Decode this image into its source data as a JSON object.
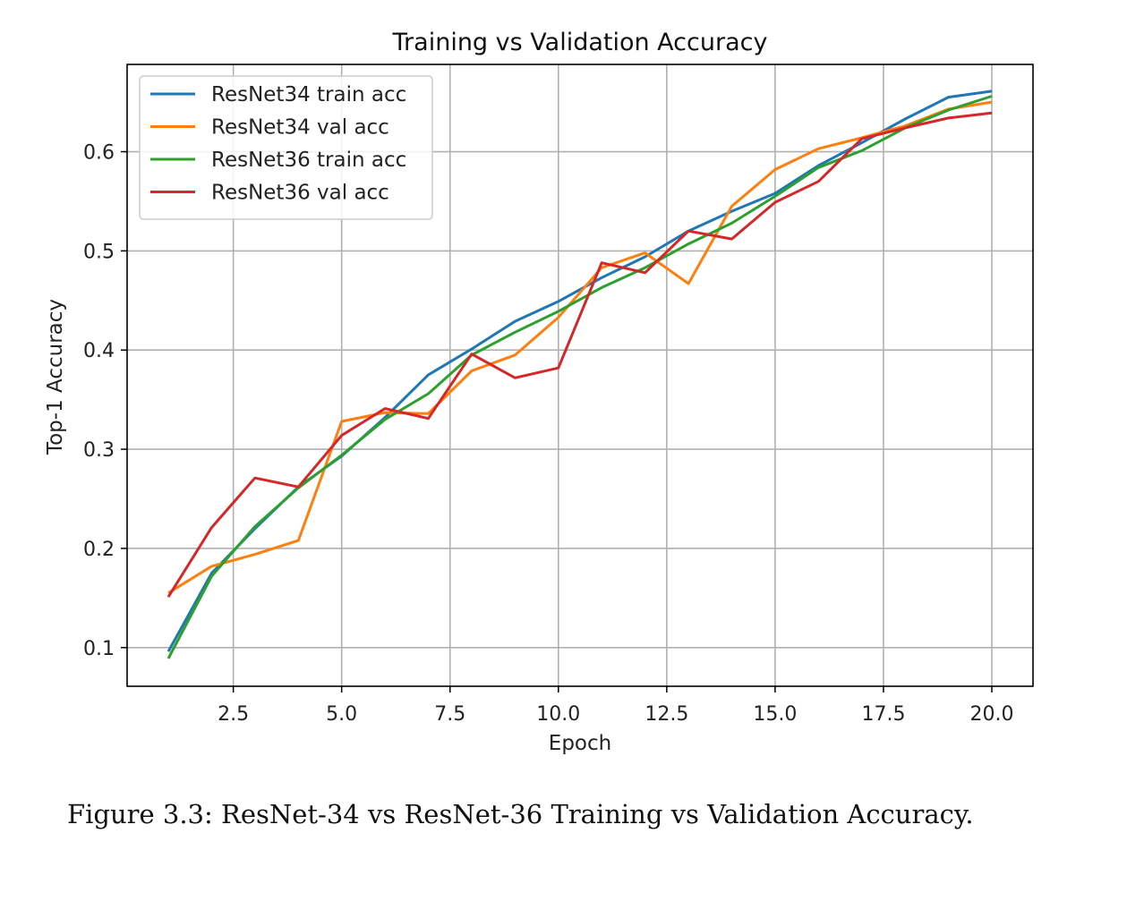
{
  "figure": {
    "caption": "Figure 3.3: ResNet-34 vs ResNet-36 Training vs Validation Accuracy."
  },
  "chart_data": {
    "type": "line",
    "title": "Training vs Validation Accuracy",
    "xlabel": "Epoch",
    "ylabel": "Top-1 Accuracy",
    "xlim": [
      0.05,
      20.95
    ],
    "ylim": [
      0.061,
      0.688
    ],
    "xticks": [
      2.5,
      5.0,
      7.5,
      10.0,
      12.5,
      15.0,
      17.5,
      20.0
    ],
    "xtick_labels": [
      "2.5",
      "5.0",
      "7.5",
      "10.0",
      "12.5",
      "15.0",
      "17.5",
      "20.0"
    ],
    "yticks": [
      0.1,
      0.2,
      0.3,
      0.4,
      0.5,
      0.6
    ],
    "ytick_labels": [
      "0.1",
      "0.2",
      "0.3",
      "0.4",
      "0.5",
      "0.6"
    ],
    "grid": true,
    "legend_position": "top-left",
    "x": [
      1,
      2,
      3,
      4,
      5,
      6,
      7,
      8,
      9,
      10,
      11,
      12,
      13,
      14,
      15,
      16,
      17,
      18,
      19,
      20
    ],
    "series": [
      {
        "name": "ResNet34 train acc",
        "color": "#1f77b4",
        "values": [
          0.096,
          0.175,
          0.22,
          0.262,
          0.293,
          0.332,
          0.375,
          0.401,
          0.429,
          0.449,
          0.473,
          0.494,
          0.52,
          0.54,
          0.558,
          0.586,
          0.609,
          0.633,
          0.655,
          0.661
        ]
      },
      {
        "name": "ResNet34 val acc",
        "color": "#ff7f0e",
        "values": [
          0.155,
          0.182,
          0.194,
          0.208,
          0.328,
          0.337,
          0.336,
          0.379,
          0.395,
          0.433,
          0.483,
          0.498,
          0.467,
          0.545,
          0.582,
          0.603,
          0.614,
          0.626,
          0.643,
          0.65
        ]
      },
      {
        "name": "ResNet36 train acc",
        "color": "#2ca02c",
        "values": [
          0.089,
          0.172,
          0.222,
          0.261,
          0.294,
          0.33,
          0.356,
          0.395,
          0.418,
          0.439,
          0.463,
          0.483,
          0.507,
          0.528,
          0.555,
          0.584,
          0.601,
          0.624,
          0.642,
          0.656
        ]
      },
      {
        "name": "ResNet36 val acc",
        "color": "#d62728",
        "values": [
          0.151,
          0.221,
          0.271,
          0.262,
          0.314,
          0.341,
          0.331,
          0.396,
          0.372,
          0.382,
          0.488,
          0.478,
          0.52,
          0.512,
          0.549,
          0.57,
          0.613,
          0.624,
          0.634,
          0.639
        ]
      }
    ]
  }
}
